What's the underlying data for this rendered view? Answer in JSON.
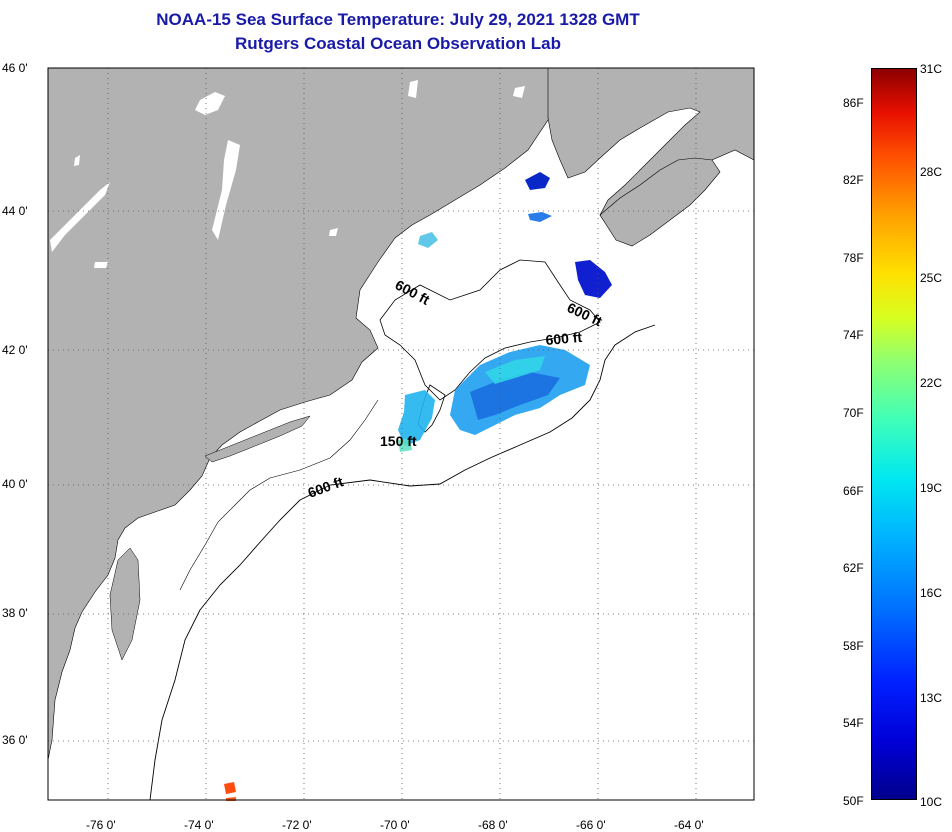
{
  "title": {
    "line1": "NOAA-15 Sea Surface Temperature:  July 29, 2021 1328 GMT",
    "line2": "Rutgers Coastal Ocean Observation Lab"
  },
  "map": {
    "lat_labels": [
      "46 0'",
      "44 0'",
      "42 0'",
      "40 0'",
      "38 0'",
      "36 0'"
    ],
    "lon_labels": [
      "-76 0'",
      "-74 0'",
      "-72 0'",
      "-70 0'",
      "-68 0'",
      "-66 0'",
      "-64 0'"
    ],
    "contour_labels": [
      "600 ft",
      "600 ft",
      "600 ft",
      "150 ft",
      "600 ft"
    ],
    "colors": {
      "land": "#b2b2b2",
      "ocean": "#ffffff",
      "title": "#1a1aa8"
    }
  },
  "colorbar": {
    "celsius": [
      "31C",
      "28C",
      "25C",
      "22C",
      "19C",
      "16C",
      "13C",
      "10C"
    ],
    "fahrenheit": [
      "86F",
      "82F",
      "78F",
      "74F",
      "70F",
      "66F",
      "62F",
      "58F",
      "54F",
      "50F"
    ]
  }
}
